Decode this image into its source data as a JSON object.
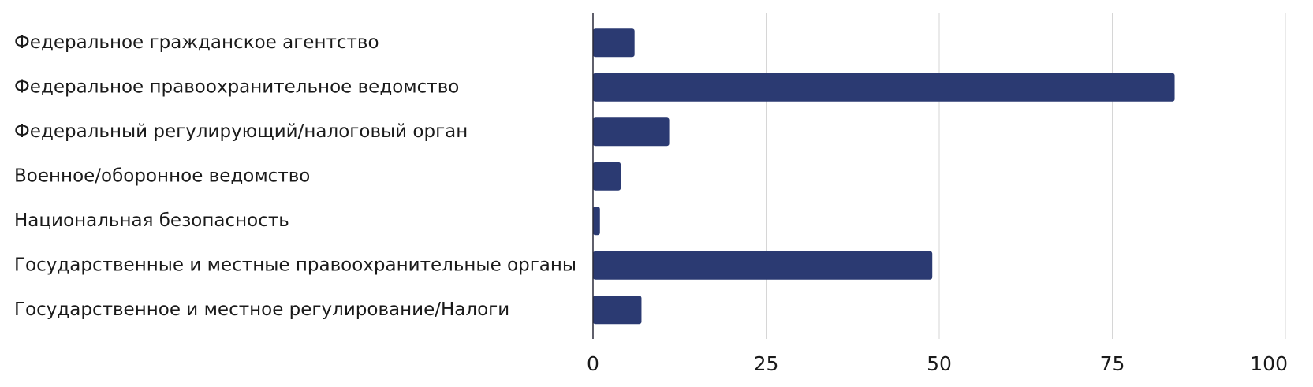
{
  "chart_data": {
    "type": "bar",
    "orientation": "horizontal",
    "categories": [
      "Федеральное гражданское агентство",
      "Федеральное правоохранительное ведомство",
      "Федеральный регулирующий/налоговый орган",
      "Военное/оборонное ведомство",
      "Национальная безопасность",
      "Государственные и местные правоохранительные органы",
      "Государственное и местное регулирование/Налоги"
    ],
    "values": [
      6,
      84,
      11,
      4,
      1,
      49,
      7
    ],
    "xlim": [
      0,
      100
    ],
    "xticks": [
      "0",
      "25",
      "50",
      "75",
      "100"
    ],
    "grid": "vertical",
    "bar_color": "#2b3a72",
    "title": "",
    "xlabel": "",
    "ylabel": ""
  }
}
